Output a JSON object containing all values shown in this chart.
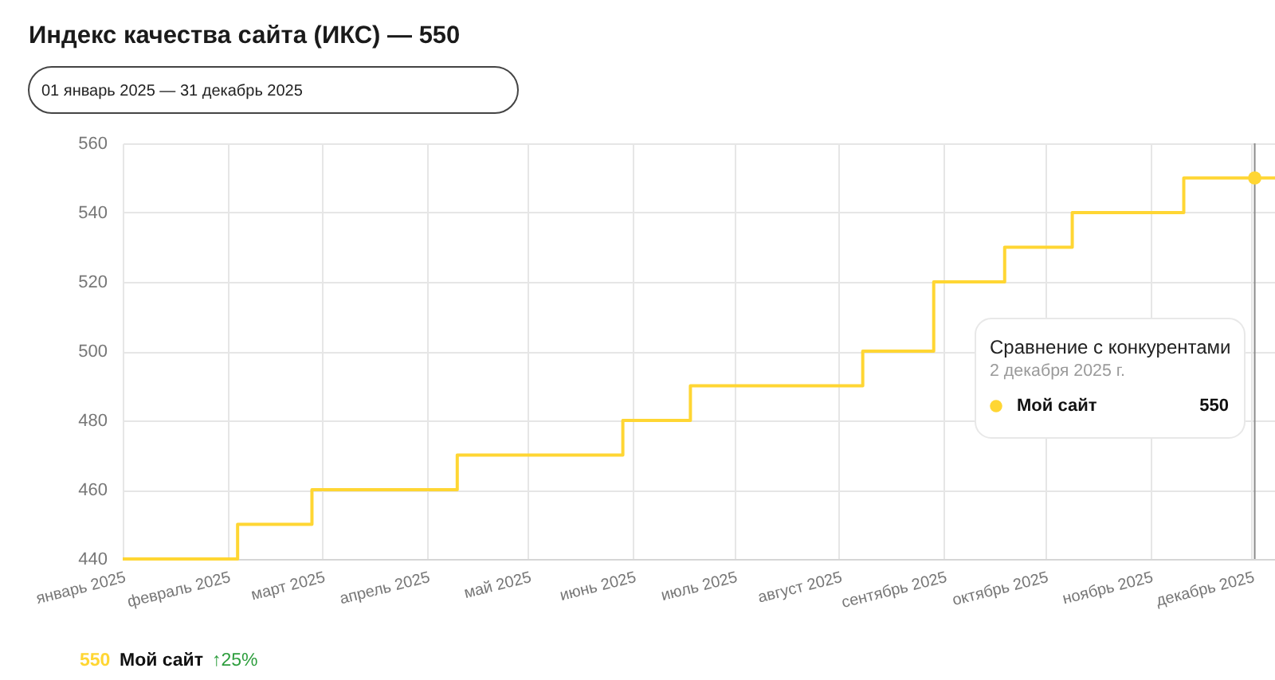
{
  "chart_data": {
    "type": "step",
    "title": "Индекс качества сайта (ИКС) — 550",
    "subtitle": "01 январь 2025 — 31 декабрь 2025",
    "series": [
      {
        "name": "Мой сайт",
        "color": "#ffd633",
        "x": [
          "2025-01-01",
          "2025-02-04",
          "2025-02-26",
          "2025-04-10",
          "2025-05-29",
          "2025-06-18",
          "2025-08-08",
          "2025-08-29",
          "2025-09-19",
          "2025-10-09",
          "2025-11-11",
          "2025-12-08"
        ],
        "values": [
          440,
          450,
          460,
          470,
          480,
          490,
          500,
          520,
          530,
          540,
          550,
          550
        ]
      },
      {
        "type": "scatter",
        "color": "#ffd633",
        "x": [
          "2025-12-02"
        ],
        "values": [
          550
        ]
      }
    ],
    "xlim": [
      "2025-01-01",
      "2025-12-08"
    ],
    "xticks": [
      {
        "value": "2025-01-01",
        "label": "январь 2025"
      },
      {
        "value": "2025-02-01",
        "label": "февраль 2025"
      },
      {
        "value": "2025-03-01",
        "label": "март 2025"
      },
      {
        "value": "2025-04-01",
        "label": "апрель 2025"
      },
      {
        "value": "2025-05-01",
        "label": "май 2025"
      },
      {
        "value": "2025-06-01",
        "label": "июнь 2025"
      },
      {
        "value": "2025-07-01",
        "label": "июль 2025"
      },
      {
        "value": "2025-08-01",
        "label": "август 2025"
      },
      {
        "value": "2025-09-01",
        "label": "сентябрь 2025"
      },
      {
        "value": "2025-10-01",
        "label": "октябрь 2025"
      },
      {
        "value": "2025-11-01",
        "label": "ноябрь 2025"
      },
      {
        "value": "2025-12-01",
        "label": "декабрь 2025"
      }
    ],
    "ylim": [
      440,
      560
    ],
    "yticks": [
      440,
      460,
      480,
      500,
      520,
      540,
      560
    ],
    "grid": true,
    "legend": "bottom",
    "ref_lines": [
      {
        "axis": "x",
        "value": "2025-12-02",
        "color": "#8c8c8c"
      }
    ],
    "annotations": [
      "Сравнение с конкурентами",
      "2 декабря 2025 г.",
      "550",
      "550",
      "↑25%"
    ]
  }
}
